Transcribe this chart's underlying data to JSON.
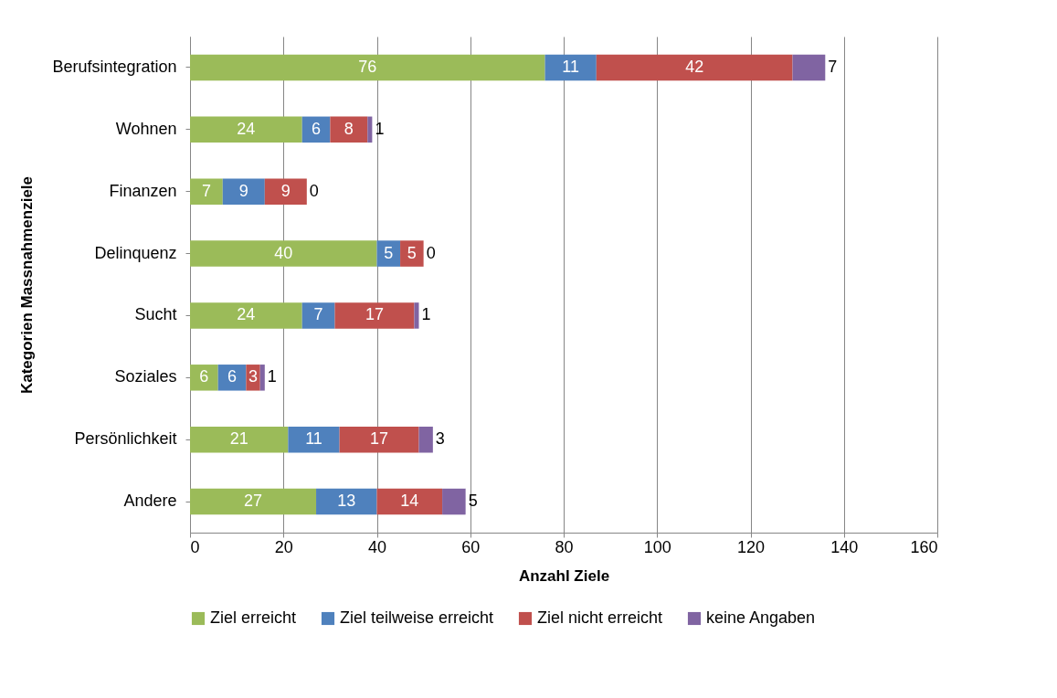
{
  "chart_data": {
    "type": "bar",
    "orientation": "horizontal",
    "stacked": true,
    "xlabel": "Anzahl Ziele",
    "ylabel": "Kategorien Massnahmenziele",
    "categories": [
      "Berufsintegration",
      "Wohnen",
      "Finanzen",
      "Delinquenz",
      "Sucht",
      "Soziales",
      "Persönlichkeit",
      "Andere"
    ],
    "series": [
      {
        "name": "Ziel erreicht",
        "color": "#9bbb59",
        "values": [
          76,
          24,
          7,
          40,
          24,
          6,
          21,
          27
        ]
      },
      {
        "name": "Ziel teilweise erreicht",
        "color": "#4f81bd",
        "values": [
          11,
          6,
          9,
          5,
          7,
          6,
          11,
          13
        ]
      },
      {
        "name": "Ziel nicht erreicht",
        "color": "#c0504d",
        "values": [
          42,
          8,
          9,
          5,
          17,
          3,
          17,
          14
        ]
      },
      {
        "name": "keine Angaben",
        "color": "#8064a2",
        "values": [
          7,
          1,
          0,
          0,
          1,
          1,
          3,
          5
        ]
      }
    ],
    "xlim": [
      0,
      160
    ],
    "xticks": [
      0,
      20,
      40,
      60,
      80,
      100,
      120,
      140,
      160
    ],
    "grid": "x",
    "legend": "bottom",
    "data_labels": true
  }
}
